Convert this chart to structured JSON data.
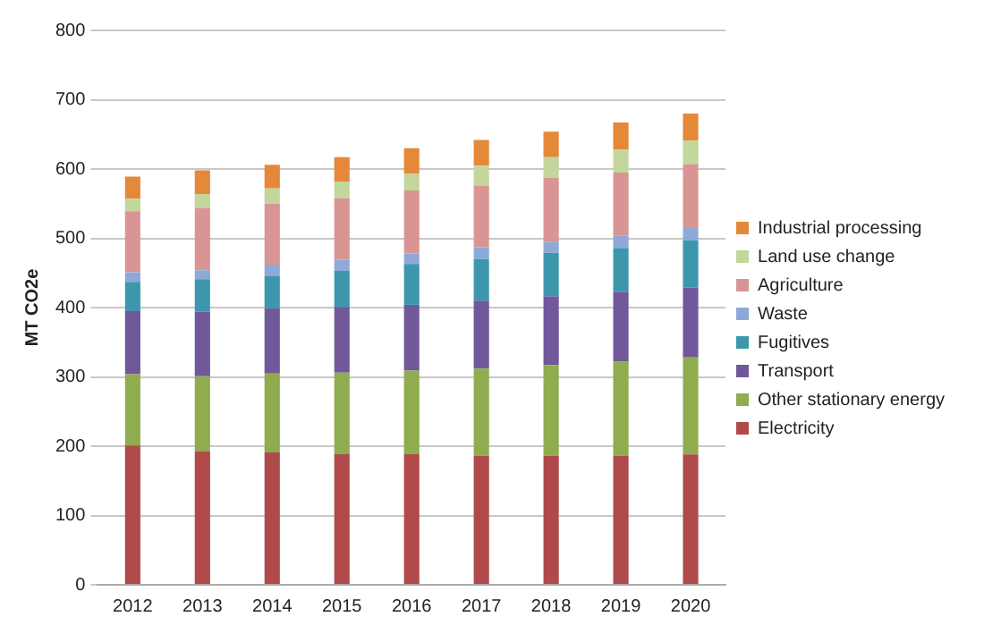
{
  "chart_data": {
    "type": "bar",
    "stacked": true,
    "ylabel": "MT CO2e",
    "categories": [
      "2012",
      "2013",
      "2014",
      "2015",
      "2016",
      "2017",
      "2018",
      "2019",
      "2020"
    ],
    "series": [
      {
        "name": "Electricity",
        "color": "#b04a4a",
        "values": [
          201,
          193,
          191,
          189,
          189,
          186,
          186,
          186,
          188
        ]
      },
      {
        "name": "Other stationary energy",
        "color": "#8fac4e",
        "values": [
          103,
          108,
          114,
          117,
          120,
          126,
          131,
          136,
          140
        ]
      },
      {
        "name": "Transport",
        "color": "#71589a",
        "values": [
          91,
          93,
          94,
          95,
          95,
          98,
          99,
          101,
          101
        ]
      },
      {
        "name": "Fugitives",
        "color": "#3d97ac",
        "values": [
          42,
          47,
          47,
          52,
          59,
          60,
          63,
          63,
          68
        ]
      },
      {
        "name": "Waste",
        "color": "#8ea9d8",
        "values": [
          14,
          13,
          16,
          16,
          15,
          17,
          16,
          18,
          18
        ]
      },
      {
        "name": "Agriculture",
        "color": "#d99594",
        "values": [
          88,
          90,
          88,
          89,
          91,
          89,
          92,
          91,
          92
        ]
      },
      {
        "name": "Land use change",
        "color": "#c3d69b",
        "values": [
          18,
          20,
          22,
          24,
          24,
          29,
          30,
          33,
          34
        ]
      },
      {
        "name": "Industrial processing",
        "color": "#e5883a",
        "values": [
          32,
          34,
          34,
          35,
          37,
          37,
          37,
          39,
          39
        ]
      }
    ],
    "ylim": [
      0,
      800
    ],
    "yticks": [
      0,
      100,
      200,
      300,
      400,
      500,
      600,
      700,
      800
    ],
    "grid": "y",
    "legend": "right"
  }
}
